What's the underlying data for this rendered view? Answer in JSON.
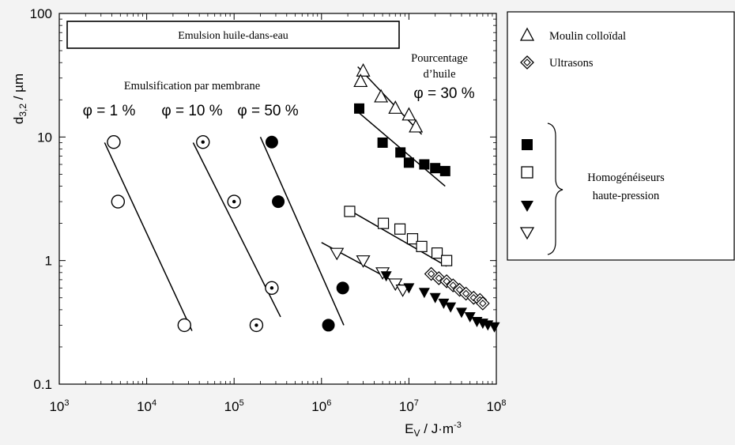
{
  "chart_data": {
    "type": "scatter",
    "title": "Emulsion huile-dans-eau",
    "xlabel_main": "E",
    "xlabel_sub": "V",
    "xlabel_unit": " / J·m",
    "xlabel_exp": "-3",
    "ylabel_main": "d",
    "ylabel_sub": "3,2",
    "ylabel_unit": " / µm",
    "x_scale": "log",
    "y_scale": "log",
    "xlim": [
      1000,
      100000000
    ],
    "ylim": [
      0.1,
      100
    ],
    "x_ticks": [
      {
        "value": 1000,
        "base": "10",
        "exp": "3"
      },
      {
        "value": 10000,
        "base": "10",
        "exp": "4"
      },
      {
        "value": 100000,
        "base": "10",
        "exp": "5"
      },
      {
        "value": 1000000,
        "base": "10",
        "exp": "6"
      },
      {
        "value": 10000000,
        "base": "10",
        "exp": "7"
      },
      {
        "value": 100000000,
        "base": "10",
        "exp": "8"
      }
    ],
    "y_ticks": [
      {
        "value": 0.1,
        "label": "0.1"
      },
      {
        "value": 1,
        "label": "1"
      },
      {
        "value": 10,
        "label": "10"
      },
      {
        "value": 100,
        "label": "100"
      }
    ],
    "annotations": {
      "membrane_title": "Emulsification par membrane",
      "phi_1": "φ = 1 %",
      "phi_10": "φ = 10 %",
      "phi_50": "φ = 50 %",
      "oil_line1": "Pourcentage",
      "oil_line2": "d’huile",
      "oil_line3": "φ = 30 %"
    },
    "legend": {
      "colloid_mill": "Moulin colloïdal",
      "ultrasound": "Ultrasons",
      "hp_line1": "Homogénéiseurs",
      "hp_line2": "haute-pression"
    },
    "series": [
      {
        "marker": "open-circle",
        "points": [
          [
            4200,
            9.1
          ],
          [
            4700,
            3.0
          ],
          [
            27000,
            0.3
          ]
        ],
        "fit": [
          [
            3300,
            9.0
          ],
          [
            33000,
            0.27
          ]
        ]
      },
      {
        "marker": "dotted-circle",
        "points": [
          [
            44000,
            9.1
          ],
          [
            100000,
            3.0
          ],
          [
            270000,
            0.6
          ],
          [
            180000,
            0.3
          ]
        ],
        "fit": [
          [
            34000,
            9.0
          ],
          [
            340000,
            0.35
          ]
        ]
      },
      {
        "marker": "filled-circle",
        "points": [
          [
            270000,
            9.1
          ],
          [
            320000,
            3.0
          ],
          [
            1750000,
            0.6
          ],
          [
            1200000,
            0.3
          ]
        ],
        "fit": [
          [
            200000,
            10.0
          ],
          [
            1800000,
            0.3
          ]
        ]
      },
      {
        "marker": "open-triangle-up",
        "points": [
          [
            3000,
            34
          ],
          [
            2800,
            28
          ],
          [
            4800,
            21
          ],
          [
            7000,
            17
          ],
          [
            10000,
            15
          ],
          [
            12000,
            12
          ]
        ],
        "points_scale": "x_e4"
      },
      {
        "marker": "filled-square",
        "points": [
          [
            2700000,
            17
          ],
          [
            5000000,
            9
          ],
          [
            8000000,
            7.5
          ],
          [
            10000000,
            6.2
          ],
          [
            15000000,
            6.0
          ],
          [
            20000000,
            5.6
          ],
          [
            26000000,
            5.3
          ]
        ]
      },
      {
        "marker": "open-square",
        "points": [
          [
            2100000,
            2.5
          ],
          [
            5100000,
            2.0
          ],
          [
            7900000,
            1.8
          ],
          [
            11000000,
            1.5
          ],
          [
            14000000,
            1.3
          ],
          [
            21000000,
            1.15
          ],
          [
            27000000,
            1.0
          ]
        ]
      },
      {
        "marker": "open-triangle-down",
        "points": [
          [
            1500000,
            1.15
          ],
          [
            3000000,
            1.0
          ],
          [
            5000000,
            0.8
          ],
          [
            7000000,
            0.65
          ],
          [
            8500000,
            0.58
          ]
        ]
      },
      {
        "marker": "filled-triangle-down",
        "points": [
          [
            5500000,
            0.75
          ],
          [
            10000000,
            0.6
          ],
          [
            15000000,
            0.55
          ],
          [
            20000000,
            0.5
          ],
          [
            25000000,
            0.45
          ],
          [
            30000000,
            0.42
          ],
          [
            40000000,
            0.38
          ],
          [
            50000000,
            0.35
          ],
          [
            60000000,
            0.32
          ],
          [
            70000000,
            0.31
          ],
          [
            80000000,
            0.3
          ],
          [
            95000000,
            0.29
          ]
        ]
      },
      {
        "marker": "open-diamond",
        "points": [
          [
            18000000,
            0.78
          ],
          [
            22000000,
            0.72
          ],
          [
            27000000,
            0.68
          ],
          [
            32000000,
            0.63
          ],
          [
            38000000,
            0.58
          ],
          [
            45000000,
            0.54
          ],
          [
            55000000,
            0.5
          ],
          [
            65000000,
            0.48
          ],
          [
            70000000,
            0.45
          ]
        ]
      }
    ],
    "fit_lines_extra": [
      [
        [
          2600000,
          37
        ],
        [
          14000000,
          10.5
        ]
      ],
      [
        [
          2600000,
          16
        ],
        [
          26000000,
          4.0
        ]
      ],
      [
        [
          2000000,
          2.6
        ],
        [
          27000000,
          0.9
        ]
      ],
      [
        [
          1000000,
          1.4
        ],
        [
          8500000,
          0.62
        ]
      ]
    ]
  }
}
